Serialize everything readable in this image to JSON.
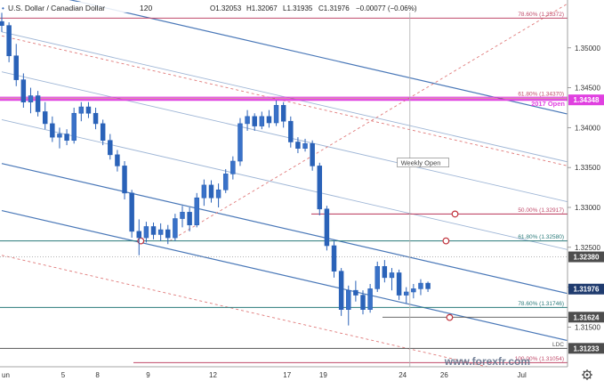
{
  "chart_data": {
    "type": "candlestick",
    "symbol": "U.S. Dollar / Canadian Dollar",
    "timeframe": "120",
    "ohlc_header": {
      "open": "O1.32053",
      "high": "H1.32067",
      "low": "L1.31935",
      "close": "C1.31976",
      "change": "−0.00077 (−0.06%)"
    },
    "ylim": [
      1.3098,
      1.356
    ],
    "yticks": [
      "1.35000",
      "1.34500",
      "1.34000",
      "1.33500",
      "1.33000",
      "1.32500",
      "1.32000",
      "1.31500"
    ],
    "xlim": [
      0,
      31.3
    ],
    "xticks": [
      {
        "label": "un",
        "x": 0.0
      },
      {
        "label": "5",
        "x": 3.4
      },
      {
        "label": "8",
        "x": 5.3
      },
      {
        "label": "9",
        "x": 8.1
      },
      {
        "label": "12",
        "x": 11.7
      },
      {
        "label": "17",
        "x": 15.8
      },
      {
        "label": "19",
        "x": 17.8
      },
      {
        "label": "24",
        "x": 22.2
      },
      {
        "label": "26",
        "x": 24.5
      },
      {
        "label": "Jul",
        "x": 28.8
      }
    ],
    "price_labels": [
      {
        "text": "1.34348",
        "value": 1.34348,
        "color": "#e040e0"
      },
      {
        "text": "1.32380",
        "value": 1.3238,
        "color": "#4d4d4d"
      },
      {
        "text": "1.31976",
        "value": 1.31976,
        "color": "#1f3b6e"
      },
      {
        "text": "1.31624",
        "value": 1.31624,
        "color": "#4d4d4d"
      },
      {
        "text": "1.31233",
        "value": 1.31233,
        "color": "#4d4d4d"
      }
    ],
    "levels": [
      {
        "label": "78.60% (1.35372)",
        "value": 1.35372,
        "color": "#c04a6a"
      },
      {
        "label": "61.80% (1.34370)",
        "value": 1.3437,
        "color": "#c04a6a"
      },
      {
        "label": "2017 Open",
        "value": 1.34348,
        "color": "#e040e0"
      },
      {
        "label": "50.00% (1.32917)",
        "value": 1.32917,
        "color": "#c04a6a"
      },
      {
        "label": "61.80% (1.32580)",
        "value": 1.3258,
        "color": "#2a7a7a"
      },
      {
        "label": "78.60% (1.31746)",
        "value": 1.31746,
        "color": "#2a7a7a"
      },
      {
        "label": "LDC",
        "value": 1.31233,
        "color": "#555555"
      },
      {
        "label": "100.00% (1.31054)",
        "value": 1.31054,
        "color": "#c04a6a"
      }
    ],
    "annotations": [
      {
        "text": "Weekly Open",
        "x": 21.95,
        "y": 1.3354
      }
    ],
    "pitchfork": {
      "slope_per_day": -0.00052,
      "blue_lines_at_x0": [
        1.358,
        1.3355,
        1.3296
      ],
      "light_blue_lines_at_x0": [
        1.352,
        1.347,
        1.341
      ],
      "red_dashed_lines_at_x0": [
        1.3515,
        1.324
      ],
      "red_trend": {
        "from": [
          9.3,
          1.3258
        ],
        "to": [
          31.3,
          1.3555
        ]
      }
    },
    "reference_markers": [
      {
        "x": 7.7,
        "y": 1.3258
      },
      {
        "x": 25.1,
        "y": 1.32917
      },
      {
        "x": 24.6,
        "y": 1.3258
      },
      {
        "x": 24.8,
        "y": 1.3162
      }
    ],
    "vertical_line_x": 22.6,
    "candles": [
      [
        0.0,
        1.3533,
        1.3544,
        1.352,
        1.3528
      ],
      [
        0.4,
        1.3528,
        1.3532,
        1.3482,
        1.349
      ],
      [
        0.8,
        1.349,
        1.3505,
        1.3452,
        1.346
      ],
      [
        1.2,
        1.346,
        1.3468,
        1.3425,
        1.3432
      ],
      [
        1.6,
        1.3432,
        1.345,
        1.3418,
        1.344
      ],
      [
        2.0,
        1.344,
        1.3446,
        1.3414,
        1.342
      ],
      [
        2.4,
        1.342,
        1.3432,
        1.3398,
        1.3405
      ],
      [
        2.8,
        1.3405,
        1.3414,
        1.3382,
        1.3388
      ],
      [
        3.2,
        1.3388,
        1.34,
        1.3374,
        1.3392
      ],
      [
        3.6,
        1.3392,
        1.3398,
        1.3378,
        1.3384
      ],
      [
        4.0,
        1.3384,
        1.3425,
        1.338,
        1.3418
      ],
      [
        4.4,
        1.3418,
        1.3432,
        1.3408,
        1.3426
      ],
      [
        4.8,
        1.3426,
        1.3432,
        1.3412,
        1.3418
      ],
      [
        5.2,
        1.3418,
        1.3425,
        1.3398,
        1.3405
      ],
      [
        5.6,
        1.3405,
        1.341,
        1.3378,
        1.3384
      ],
      [
        6.0,
        1.3384,
        1.3392,
        1.336,
        1.3366
      ],
      [
        6.4,
        1.3366,
        1.3372,
        1.3345,
        1.3352
      ],
      [
        6.8,
        1.3352,
        1.3358,
        1.331,
        1.3318
      ],
      [
        7.2,
        1.3318,
        1.3322,
        1.3262,
        1.327
      ],
      [
        7.6,
        1.327,
        1.3285,
        1.324,
        1.3262
      ],
      [
        8.0,
        1.3262,
        1.3282,
        1.3256,
        1.3276
      ],
      [
        8.4,
        1.3276,
        1.3281,
        1.326,
        1.3266
      ],
      [
        8.8,
        1.3266,
        1.328,
        1.3258,
        1.3272
      ],
      [
        9.2,
        1.3272,
        1.3278,
        1.3254,
        1.3262
      ],
      [
        9.6,
        1.3262,
        1.3292,
        1.3258,
        1.3286
      ],
      [
        10.0,
        1.3286,
        1.3302,
        1.3275,
        1.3294
      ],
      [
        10.4,
        1.3294,
        1.33,
        1.327,
        1.3278
      ],
      [
        10.8,
        1.3278,
        1.3318,
        1.3275,
        1.3312
      ],
      [
        11.2,
        1.3312,
        1.3335,
        1.3302,
        1.3328
      ],
      [
        11.6,
        1.3328,
        1.3334,
        1.3306,
        1.3312
      ],
      [
        12.0,
        1.3312,
        1.333,
        1.33,
        1.3322
      ],
      [
        12.4,
        1.3322,
        1.3348,
        1.3318,
        1.3342
      ],
      [
        12.8,
        1.3342,
        1.3364,
        1.3335,
        1.3358
      ],
      [
        13.2,
        1.3358,
        1.3412,
        1.3352,
        1.3405
      ],
      [
        13.6,
        1.3405,
        1.3422,
        1.3396,
        1.3414
      ],
      [
        14.0,
        1.3414,
        1.3418,
        1.3396,
        1.3402
      ],
      [
        14.4,
        1.3402,
        1.342,
        1.3398,
        1.3414
      ],
      [
        14.8,
        1.3414,
        1.3422,
        1.34,
        1.3406
      ],
      [
        15.2,
        1.3406,
        1.3434,
        1.3402,
        1.3428
      ],
      [
        15.6,
        1.3428,
        1.3432,
        1.34,
        1.3408
      ],
      [
        16.0,
        1.3408,
        1.3414,
        1.3375,
        1.3382
      ],
      [
        16.4,
        1.3382,
        1.3388,
        1.3368,
        1.3374
      ],
      [
        16.8,
        1.3374,
        1.3386,
        1.337,
        1.338
      ],
      [
        17.2,
        1.338,
        1.3384,
        1.3346,
        1.3352
      ],
      [
        17.6,
        1.3352,
        1.3356,
        1.329,
        1.3298
      ],
      [
        18.0,
        1.3298,
        1.3302,
        1.3246,
        1.3252
      ],
      [
        18.4,
        1.3252,
        1.3258,
        1.3212,
        1.322
      ],
      [
        18.8,
        1.322,
        1.3224,
        1.3164,
        1.3172
      ],
      [
        19.2,
        1.3172,
        1.3202,
        1.3152,
        1.3196
      ],
      [
        19.6,
        1.3196,
        1.3208,
        1.3182,
        1.319
      ],
      [
        20.0,
        1.319,
        1.3196,
        1.3166,
        1.3172
      ],
      [
        20.4,
        1.3172,
        1.3204,
        1.3168,
        1.3198
      ],
      [
        20.8,
        1.3198,
        1.3232,
        1.3194,
        1.3226
      ],
      [
        21.2,
        1.3226,
        1.3234,
        1.3206,
        1.3212
      ],
      [
        21.6,
        1.3212,
        1.3224,
        1.3196,
        1.3218
      ],
      [
        22.0,
        1.3218,
        1.3222,
        1.3184,
        1.319
      ],
      [
        22.4,
        1.319,
        1.32,
        1.318,
        1.3194
      ],
      [
        22.8,
        1.3194,
        1.3204,
        1.3186,
        1.3198
      ],
      [
        23.2,
        1.3198,
        1.321,
        1.319,
        1.3205
      ],
      [
        23.6,
        1.3205,
        1.3207,
        1.3194,
        1.3198
      ]
    ]
  },
  "watermark": "www.forexfr.com",
  "colors": {
    "up_candle": "#2a62b8",
    "down_candle": "#2a62b8",
    "axis_text": "#333333",
    "pink_line": "#e040e0"
  },
  "icons": {
    "settings": "gear-icon"
  }
}
